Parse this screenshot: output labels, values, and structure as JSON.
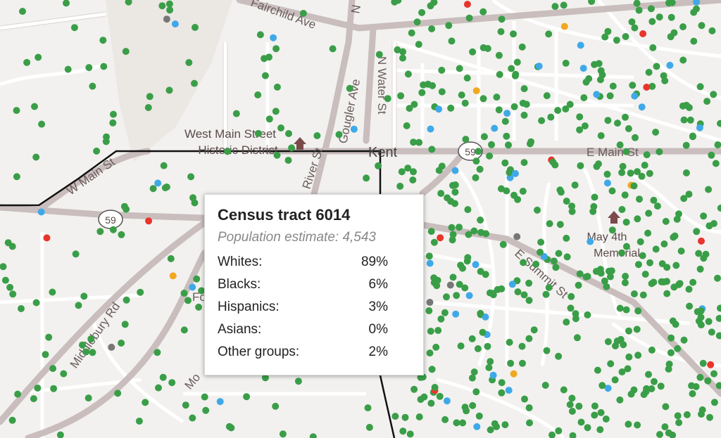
{
  "map": {
    "labels": {
      "fairchild": "Fairchild Ave",
      "n_top": "N",
      "n_water": "N Water St",
      "gougler": "Gougler Ave",
      "west_main_1": "West Main Street",
      "west_main_2": "Historic District",
      "river": "River St",
      "kent": "Kent",
      "w_main": "W Main St",
      "e_main": "E Main St",
      "route_59_a": "59",
      "route_59_b": "59",
      "may4_1": "May 4th",
      "may4_2": "Memorial",
      "e_summit": "E Summit St",
      "middlebury": "Middlebury Rd",
      "fo": "Fo",
      "mo": "Mo"
    },
    "dot_colors": {
      "white": "#3a9e48",
      "black": "#3fa9e8",
      "hispanic": "#e8352b",
      "asian": "#f0a822",
      "other": "#777777"
    }
  },
  "popup": {
    "title": "Census tract 6014",
    "population": "Population estimate: 4,543",
    "rows": [
      {
        "label": "Whites:",
        "value": "89%"
      },
      {
        "label": "Blacks:",
        "value": "6%"
      },
      {
        "label": "Hispanics:",
        "value": "3%"
      },
      {
        "label": "Asians:",
        "value": "0%"
      },
      {
        "label": "Other groups:",
        "value": "2%"
      }
    ]
  }
}
